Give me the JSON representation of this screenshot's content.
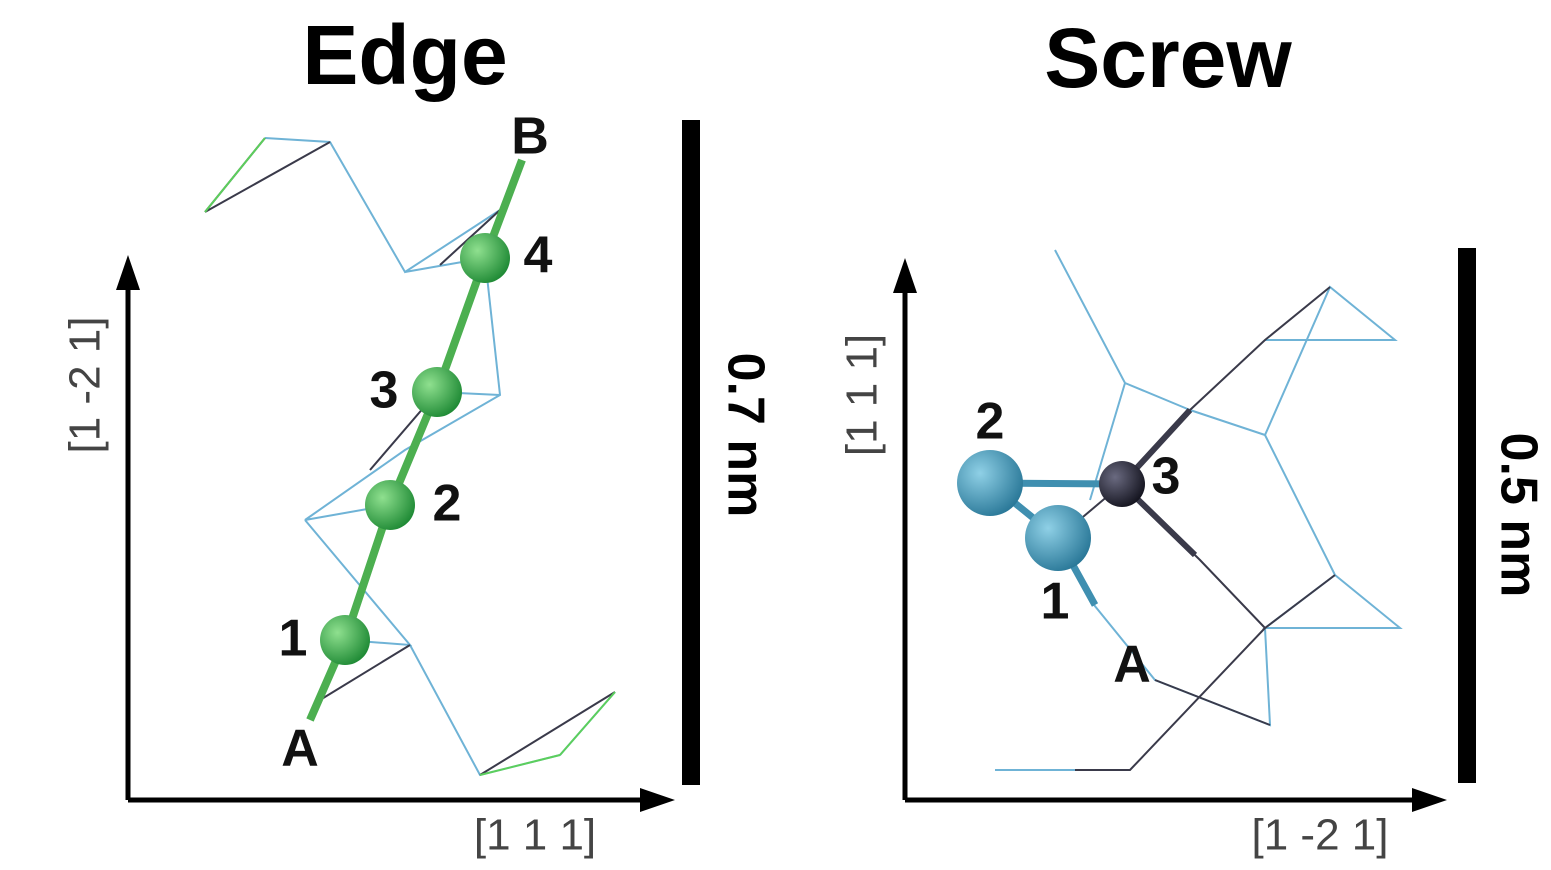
{
  "panels": [
    {
      "title": "Edge",
      "x_axis": "[1 1 1]",
      "y_axis": "[1 -2 1]",
      "scale": "0.7 nm",
      "points": [
        "A",
        "B"
      ],
      "atoms": [
        "1",
        "2",
        "3",
        "4"
      ]
    },
    {
      "title": "Screw",
      "x_axis": "[1 -2 1]",
      "y_axis": "[1 1 1]",
      "scale": "0.5 nm",
      "points": [
        "A"
      ],
      "atoms": [
        "1",
        "2",
        "3"
      ]
    }
  ]
}
